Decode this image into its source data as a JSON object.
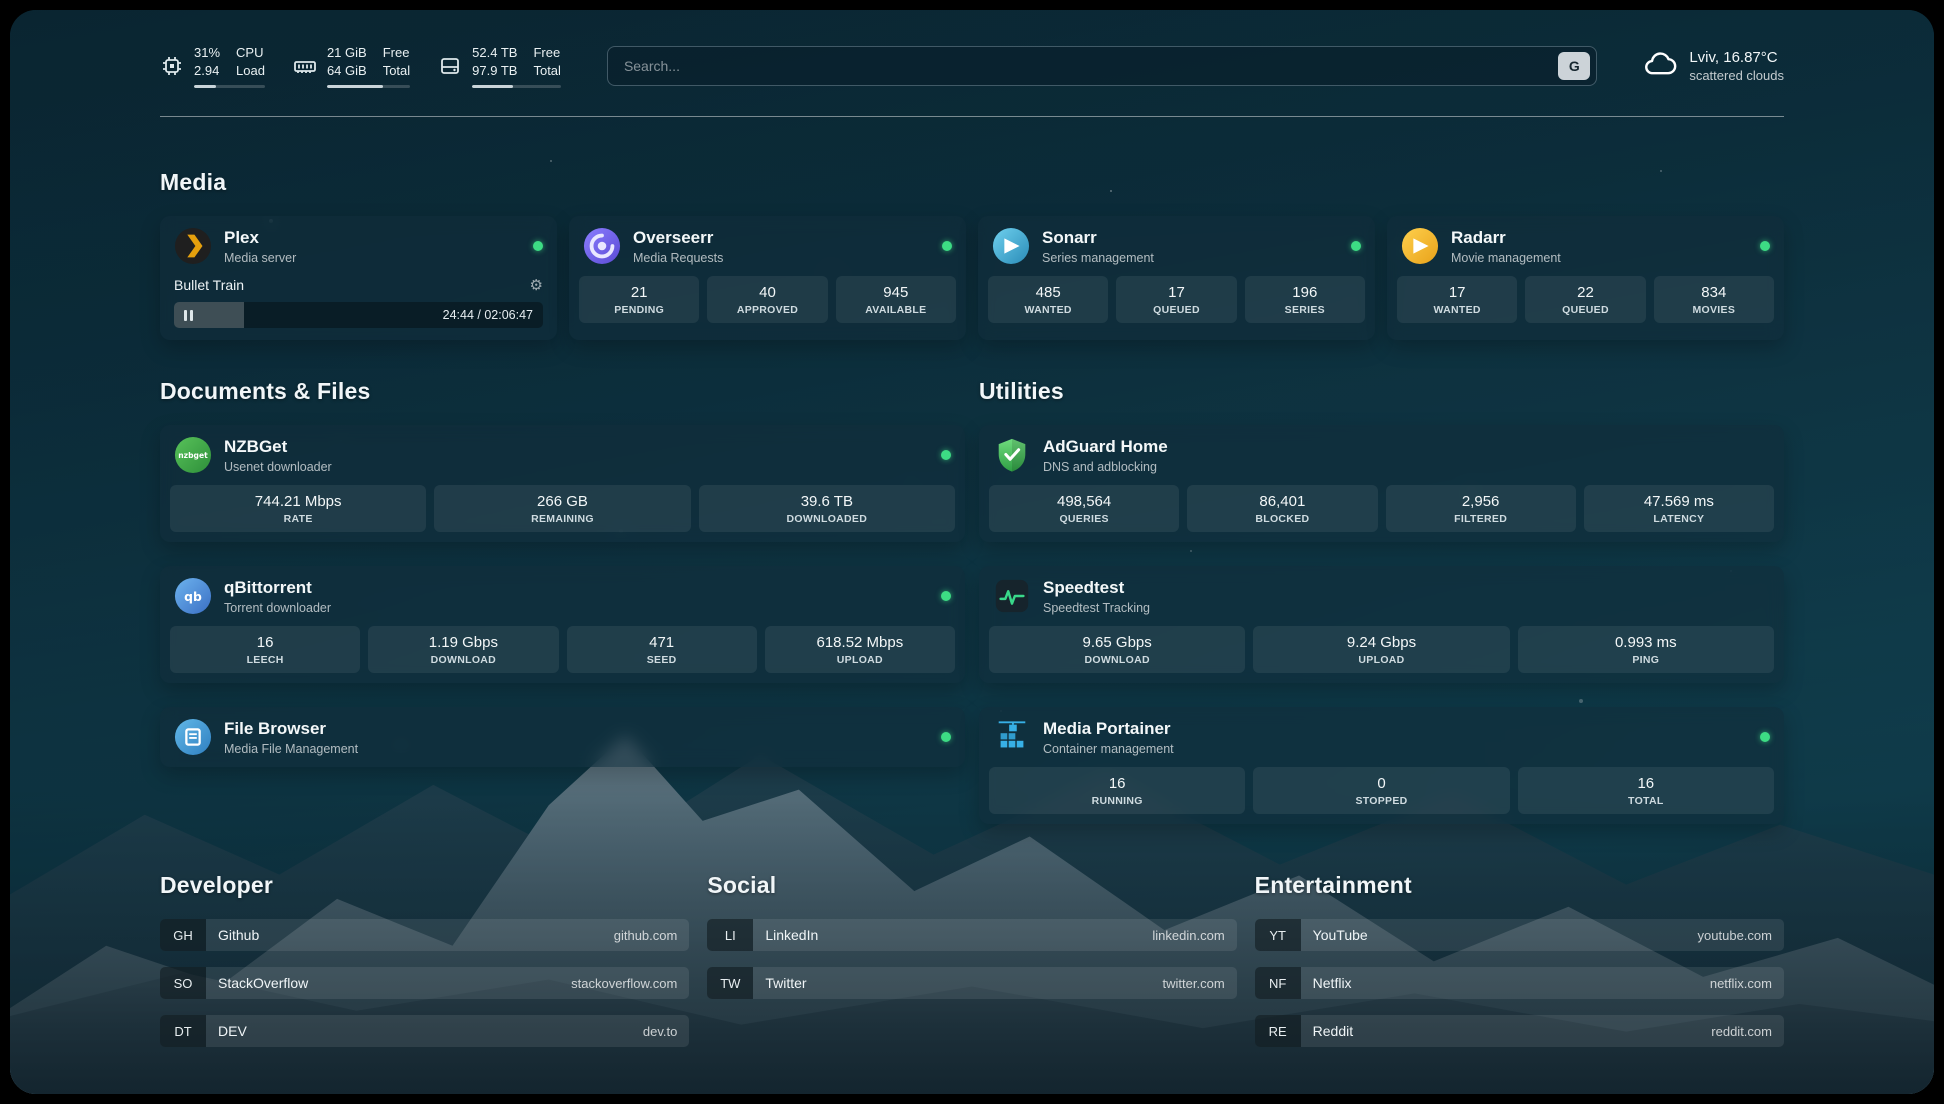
{
  "topbar": {
    "resources": [
      {
        "icon": "cpu-icon",
        "value_top": "31%",
        "value_bottom": "2.94",
        "label_top": "CPU",
        "label_bottom": "Load",
        "progress": 31
      },
      {
        "icon": "memory-icon",
        "value_top": "21 GiB",
        "value_bottom": "64 GiB",
        "label_top": "Free",
        "label_bottom": "Total",
        "progress": 67
      },
      {
        "icon": "disk-icon",
        "value_top": "52.4 TB",
        "value_bottom": "97.9 TB",
        "label_top": "Free",
        "label_bottom": "Total",
        "progress": 46
      }
    ],
    "search": {
      "placeholder": "Search...",
      "provider_label": "G"
    },
    "weather": {
      "icon": "cloud-icon",
      "location_temp": "Lviv, 16.87°C",
      "condition": "scattered clouds"
    }
  },
  "media": {
    "title": "Media",
    "cards": [
      {
        "icon": "plex-icon",
        "name": "Plex",
        "subtitle": "Media server",
        "online": true,
        "now_playing": {
          "title": "Bullet Train",
          "time": "24:44 / 02:06:47",
          "progress": 19
        }
      },
      {
        "icon": "overseerr-icon",
        "name": "Overseerr",
        "subtitle": "Media Requests",
        "online": true,
        "stats": [
          {
            "value": "21",
            "label": "PENDING"
          },
          {
            "value": "40",
            "label": "APPROVED"
          },
          {
            "value": "945",
            "label": "AVAILABLE"
          }
        ]
      },
      {
        "icon": "sonarr-icon",
        "name": "Sonarr",
        "subtitle": "Series management",
        "online": true,
        "stats": [
          {
            "value": "485",
            "label": "WANTED"
          },
          {
            "value": "17",
            "label": "QUEUED"
          },
          {
            "value": "196",
            "label": "SERIES"
          }
        ]
      },
      {
        "icon": "radarr-icon",
        "name": "Radarr",
        "subtitle": "Movie management",
        "online": true,
        "stats": [
          {
            "value": "17",
            "label": "WANTED"
          },
          {
            "value": "22",
            "label": "QUEUED"
          },
          {
            "value": "834",
            "label": "MOVIES"
          }
        ]
      }
    ]
  },
  "documents": {
    "title": "Documents & Files",
    "cards": [
      {
        "icon": "nzbget-icon",
        "name": "NZBGet",
        "subtitle": "Usenet downloader",
        "online": true,
        "stats": [
          {
            "value": "744.21 Mbps",
            "label": "RATE"
          },
          {
            "value": "266 GB",
            "label": "REMAINING"
          },
          {
            "value": "39.6 TB",
            "label": "DOWNLOADED"
          }
        ]
      },
      {
        "icon": "qbittorrent-icon",
        "name": "qBittorrent",
        "subtitle": "Torrent downloader",
        "online": true,
        "stats": [
          {
            "value": "16",
            "label": "LEECH"
          },
          {
            "value": "1.19 Gbps",
            "label": "DOWNLOAD"
          },
          {
            "value": "471",
            "label": "SEED"
          },
          {
            "value": "618.52 Mbps",
            "label": "UPLOAD"
          }
        ]
      },
      {
        "icon": "filebrowser-icon",
        "name": "File Browser",
        "subtitle": "Media File Management",
        "online": true
      }
    ]
  },
  "utilities": {
    "title": "Utilities",
    "cards": [
      {
        "icon": "adguard-icon",
        "name": "AdGuard Home",
        "subtitle": "DNS and adblocking",
        "online": false,
        "stats": [
          {
            "value": "498,564",
            "label": "QUERIES"
          },
          {
            "value": "86,401",
            "label": "BLOCKED"
          },
          {
            "value": "2,956",
            "label": "FILTERED"
          },
          {
            "value": "47.569 ms",
            "label": "LATENCY"
          }
        ]
      },
      {
        "icon": "speedtest-icon",
        "name": "Speedtest",
        "subtitle": "Speedtest Tracking",
        "online": false,
        "stats": [
          {
            "value": "9.65 Gbps",
            "label": "DOWNLOAD"
          },
          {
            "value": "9.24 Gbps",
            "label": "UPLOAD"
          },
          {
            "value": "0.993 ms",
            "label": "PING"
          }
        ]
      },
      {
        "icon": "portainer-icon",
        "name": "Media Portainer",
        "subtitle": "Container management",
        "online": true,
        "stats": [
          {
            "value": "16",
            "label": "RUNNING"
          },
          {
            "value": "0",
            "label": "STOPPED"
          },
          {
            "value": "16",
            "label": "TOTAL"
          }
        ]
      }
    ]
  },
  "bookmarks": [
    {
      "title": "Developer",
      "items": [
        {
          "abbr": "GH",
          "name": "Github",
          "url": "github.com"
        },
        {
          "abbr": "SO",
          "name": "StackOverflow",
          "url": "stackoverflow.com"
        },
        {
          "abbr": "DT",
          "name": "DEV",
          "url": "dev.to"
        }
      ]
    },
    {
      "title": "Social",
      "items": [
        {
          "abbr": "LI",
          "name": "LinkedIn",
          "url": "linkedin.com"
        },
        {
          "abbr": "TW",
          "name": "Twitter",
          "url": "twitter.com"
        }
      ]
    },
    {
      "title": "Entertainment",
      "items": [
        {
          "abbr": "YT",
          "name": "YouTube",
          "url": "youtube.com"
        },
        {
          "abbr": "NF",
          "name": "Netflix",
          "url": "netflix.com"
        },
        {
          "abbr": "RE",
          "name": "Reddit",
          "url": "reddit.com"
        }
      ]
    }
  ],
  "colors": {
    "status_online": "#3ddc84",
    "accent_plex": "#e5a00d",
    "background_teal": "#0d2e3c"
  }
}
